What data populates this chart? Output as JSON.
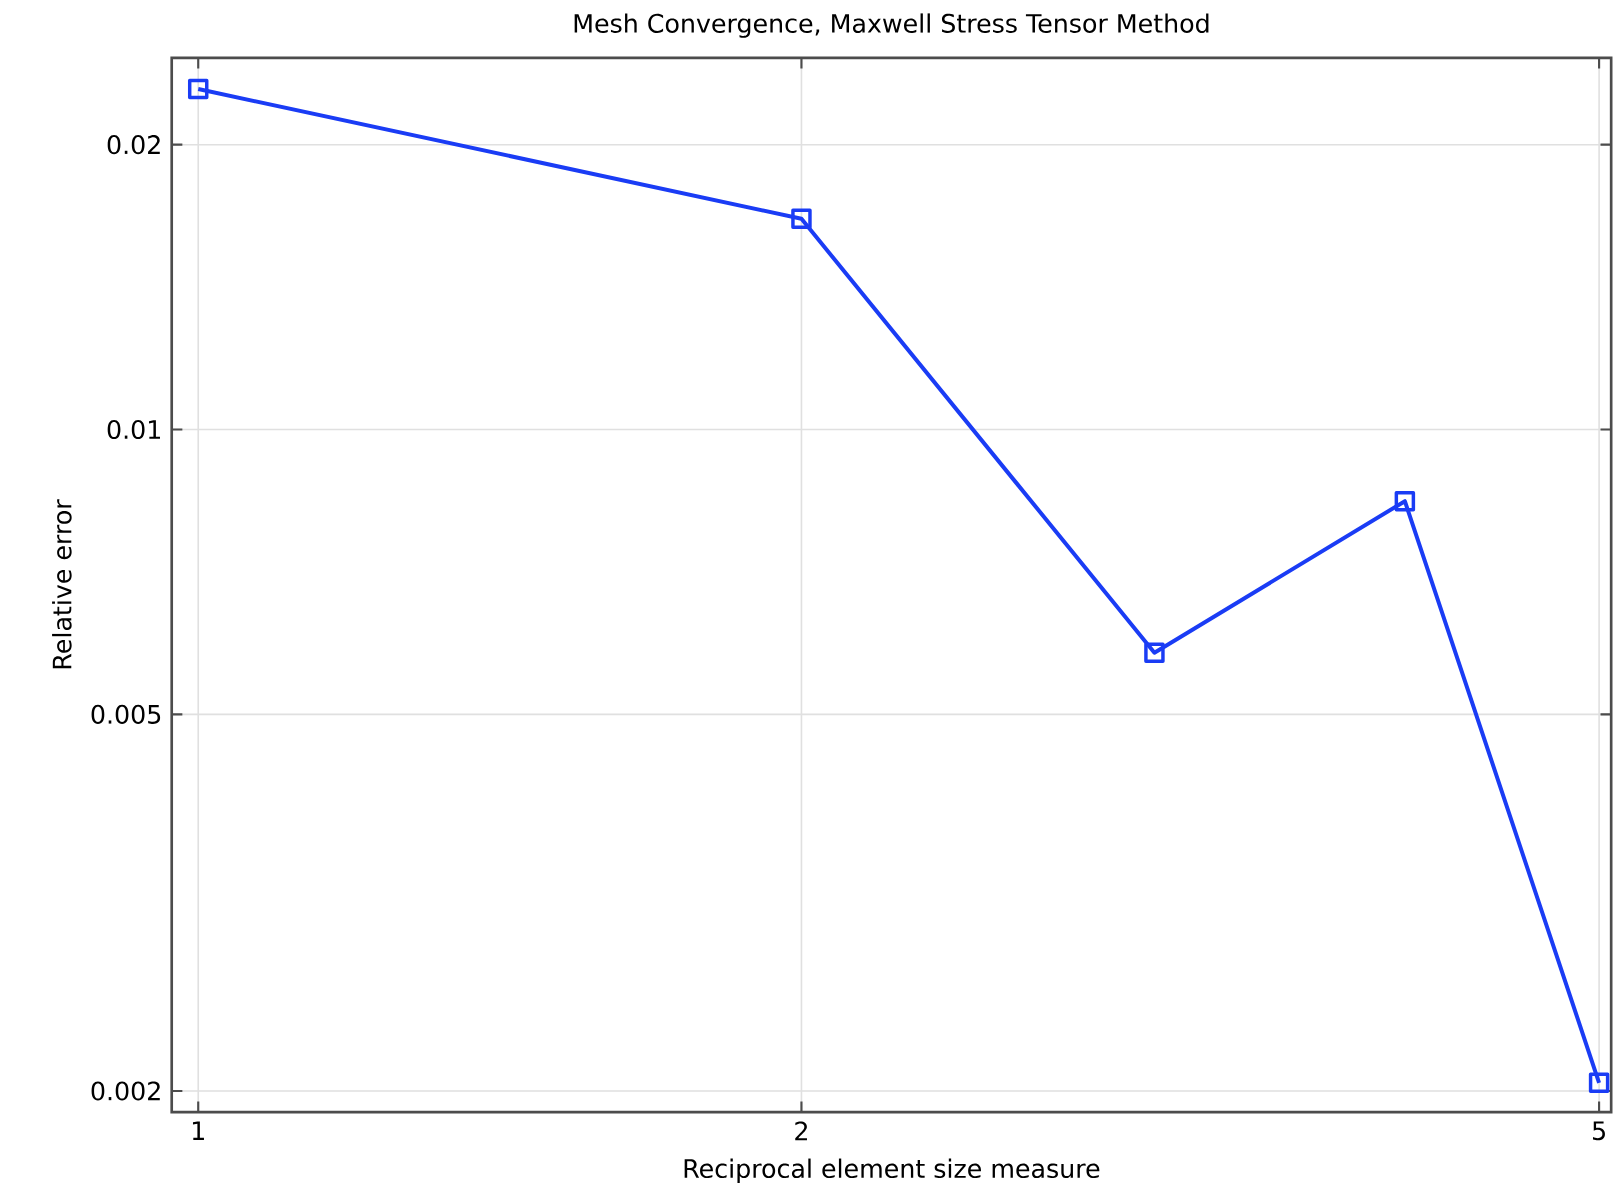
{
  "chart_data": {
    "type": "line",
    "title": "Mesh Convergence, Maxwell Stress Tensor Method",
    "xlabel": "Reciprocal element size measure",
    "ylabel": "Relative error",
    "x": [
      1,
      2,
      3,
      4,
      5
    ],
    "series": [
      {
        "color": "#1a3cf5",
        "values": [
          0.0229,
          0.0167,
          0.00581,
          0.0084,
          0.00204
        ]
      }
    ],
    "log": "xy",
    "xlim": [
      0.97,
      5.07
    ],
    "ylim": [
      0.0019,
      0.0247
    ],
    "xticks": [
      1,
      2,
      5
    ],
    "yticks": [
      0.002,
      0.005,
      0.01,
      0.02
    ],
    "grid": true,
    "marker": "square",
    "line_style": "solid"
  }
}
